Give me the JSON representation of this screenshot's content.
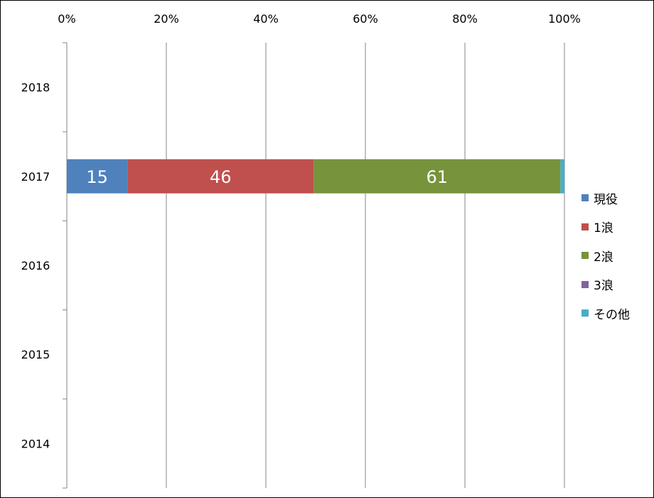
{
  "chart_data": {
    "type": "bar",
    "orientation": "horizontal",
    "stacked": "percent",
    "categories": [
      "2018",
      "2017",
      "2016",
      "2015",
      "2014"
    ],
    "xlim": [
      0,
      100
    ],
    "x_ticks": [
      "0%",
      "20%",
      "40%",
      "60%",
      "80%",
      "100%"
    ],
    "grid": true,
    "legend_position": "right",
    "series": [
      {
        "name": "現役",
        "color": "#4F81BD",
        "values": [
          null,
          15,
          null,
          null,
          null
        ],
        "labels": [
          "",
          "15",
          "",
          "",
          ""
        ]
      },
      {
        "name": "1浪",
        "color": "#C0504D",
        "values": [
          null,
          46,
          null,
          null,
          null
        ],
        "labels": [
          "",
          "46",
          "",
          "",
          ""
        ]
      },
      {
        "name": "2浪",
        "color": "#77933C",
        "values": [
          null,
          61,
          null,
          null,
          null
        ],
        "labels": [
          "",
          "61",
          "",
          "",
          ""
        ]
      },
      {
        "name": "3浪",
        "color": "#8064A2",
        "values": [
          null,
          0,
          null,
          null,
          null
        ],
        "labels": [
          "",
          "",
          "",
          "",
          ""
        ]
      },
      {
        "name": "その他",
        "color": "#4BACC6",
        "values": [
          null,
          1,
          null,
          null,
          null
        ],
        "labels": [
          "",
          "",
          "",
          "",
          ""
        ]
      }
    ]
  }
}
